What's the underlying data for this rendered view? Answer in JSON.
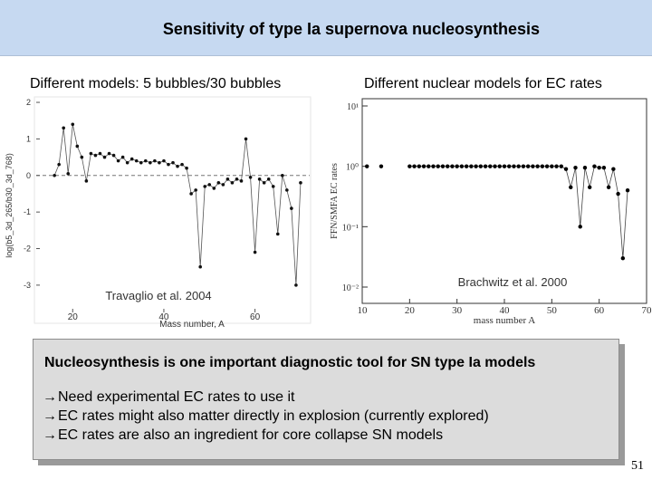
{
  "slide": {
    "title": "Sensitivity of type Ia supernova nucleosynthesis",
    "page_number": "51"
  },
  "left_panel": {
    "label": "Different models: 5 bubbles/30 bubbles",
    "citation": "Travaglio et al. 2004"
  },
  "right_panel": {
    "label": "Different nuclear models for EC rates",
    "citation": "Brachwitz et al. 2000"
  },
  "summary_box": {
    "headline": "Nucleosynthesis is one important diagnostic tool for SN type Ia models",
    "bullets": [
      "Need experimental EC rates to use it",
      "EC rates might also matter directly in explosion  (currently explored)",
      "EC rates are also an ingredient for core collapse SN models"
    ],
    "bullet_icon": "arrow-right-icon"
  },
  "chart_data": [
    {
      "type": "line",
      "xlabel": "Mass number, A",
      "ylabel": "log(b5_3d_265/b30_3d_768)",
      "xlim": [
        12,
        72
      ],
      "ylim": [
        -3.3,
        2.1
      ],
      "x_ticks": [
        "20",
        "40",
        "60"
      ],
      "y_ticks": [
        "2",
        "1",
        "0",
        "-1",
        "-2",
        "-3"
      ],
      "reference_line": 0,
      "series": [
        {
          "x": [
            16,
            17,
            18,
            19,
            20,
            21,
            22,
            23,
            24,
            25,
            26,
            27,
            28,
            29,
            30,
            31,
            32,
            33,
            34,
            35,
            36,
            37,
            38,
            39,
            40,
            41,
            42,
            43,
            44,
            45,
            46,
            47,
            48,
            49,
            50,
            51,
            52,
            53,
            54,
            55,
            56,
            57,
            58,
            59,
            60,
            61,
            62,
            63,
            64,
            65,
            66,
            67,
            68,
            69,
            70
          ],
          "y": [
            0.0,
            0.3,
            1.3,
            0.05,
            1.4,
            0.8,
            0.5,
            -0.15,
            0.6,
            0.55,
            0.6,
            0.5,
            0.6,
            0.55,
            0.4,
            0.5,
            0.35,
            0.45,
            0.4,
            0.35,
            0.4,
            0.35,
            0.4,
            0.35,
            0.4,
            0.3,
            0.35,
            0.25,
            0.3,
            0.2,
            -0.5,
            -0.4,
            -2.5,
            -0.3,
            -0.25,
            -0.35,
            -0.2,
            -0.25,
            -0.1,
            -0.2,
            -0.1,
            -0.15,
            1.0,
            -0.05,
            -2.1,
            -0.1,
            -0.2,
            -0.1,
            -0.3,
            -1.6,
            0.0,
            -0.4,
            -0.9,
            -3.0,
            -0.2
          ]
        }
      ]
    },
    {
      "type": "scatter",
      "xlabel": "mass number A",
      "ylabel": "FFN/SMFA EC rates",
      "xlim": [
        10,
        70
      ],
      "ylim": [
        -2,
        1
      ],
      "log_scale_y": true,
      "x_ticks": [
        "10",
        "20",
        "30",
        "40",
        "50",
        "60",
        "70"
      ],
      "y_ticks": [
        "10¹",
        "10⁰",
        "10⁻¹",
        "10⁻²"
      ],
      "series": [
        {
          "x": [
            11,
            14,
            20,
            21,
            22,
            23,
            24,
            25,
            26,
            27,
            28,
            29,
            30,
            31,
            32,
            33,
            34,
            35,
            36,
            37,
            38,
            39,
            40,
            41,
            42,
            43,
            44,
            45,
            46,
            47,
            48,
            49,
            50,
            51,
            52,
            53,
            54,
            55,
            56,
            57,
            58,
            59,
            60,
            61,
            62,
            63,
            64,
            65,
            66
          ],
          "y": [
            1.0,
            1.0,
            1.0,
            1.0,
            1.0,
            1.0,
            1.0,
            1.0,
            1.0,
            1.0,
            1.0,
            1.0,
            1.0,
            1.0,
            1.0,
            1.0,
            1.0,
            1.0,
            1.0,
            1.0,
            1.0,
            1.0,
            1.0,
            1.0,
            1.0,
            1.0,
            1.0,
            1.0,
            1.0,
            1.0,
            1.0,
            1.0,
            1.0,
            1.0,
            1.0,
            0.9,
            0.45,
            0.95,
            0.1,
            0.95,
            0.45,
            1.0,
            0.95,
            0.95,
            0.45,
            0.9,
            0.35,
            0.03,
            0.4
          ]
        }
      ]
    }
  ]
}
